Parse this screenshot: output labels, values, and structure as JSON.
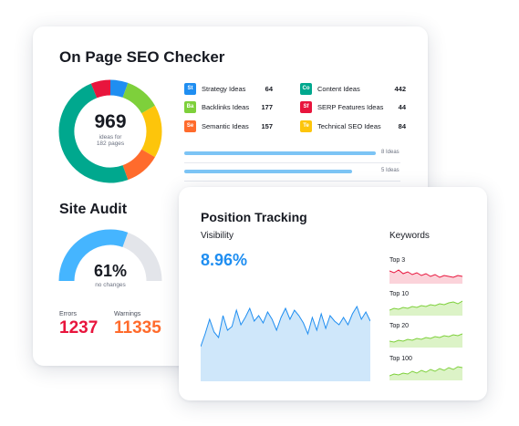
{
  "seo": {
    "title": "On Page SEO Checker",
    "donut_value": "969",
    "donut_caption_1": "ideas for",
    "donut_caption_2": "182 pages",
    "ideas": [
      {
        "abbr": "St",
        "label": "Strategy Ideas",
        "value": "64",
        "color": "#1f8ef1"
      },
      {
        "abbr": "Ba",
        "label": "Backlinks Ideas",
        "value": "177",
        "color": "#7ed03b"
      },
      {
        "abbr": "Se",
        "label": "Semantic Ideas",
        "value": "157",
        "color": "#ff6b2c"
      },
      {
        "abbr": "Co",
        "label": "Content Ideas",
        "value": "442",
        "color": "#00a88e"
      },
      {
        "abbr": "Sf",
        "label": "SERP Features Ideas",
        "value": "44",
        "color": "#e8153d"
      },
      {
        "abbr": "Te",
        "label": "Technical SEO Ideas",
        "value": "84",
        "color": "#fdc50b"
      }
    ],
    "bars": [
      {
        "label": "8 Ideas",
        "fraction": 0.82
      },
      {
        "label": "5 Ideas",
        "fraction": 0.72
      }
    ]
  },
  "audit": {
    "title": "Site Audit",
    "gauge_value": "61%",
    "gauge_caption": "no changes",
    "gauge_fraction": 0.61,
    "errors_label": "Errors",
    "errors_value": "1237",
    "warnings_label": "Warnings",
    "warnings_value": "11335"
  },
  "tracking": {
    "title": "Position Tracking",
    "visibility_label": "Visibility",
    "visibility_value": "8.96%",
    "keywords_label": "Keywords",
    "keywords": [
      {
        "label": "Top 3",
        "color": "#e8153d",
        "fill": "#fbd3da"
      },
      {
        "label": "Top 10",
        "color": "#7ed03b",
        "fill": "#dcf3c7"
      },
      {
        "label": "Top 20",
        "color": "#7ed03b",
        "fill": "#dcf3c7"
      },
      {
        "label": "Top 100",
        "color": "#7ed03b",
        "fill": "#dcf3c7"
      }
    ]
  },
  "colors": {
    "blue": "#1f8ef1",
    "green": "#7ed03b",
    "orange": "#ff6b2c",
    "teal": "#00a88e",
    "red": "#e8153d",
    "yellow": "#fdc50b",
    "light_blue": "#45b5ff",
    "errors": "#e8153d",
    "warnings": "#ff6b2c"
  }
}
